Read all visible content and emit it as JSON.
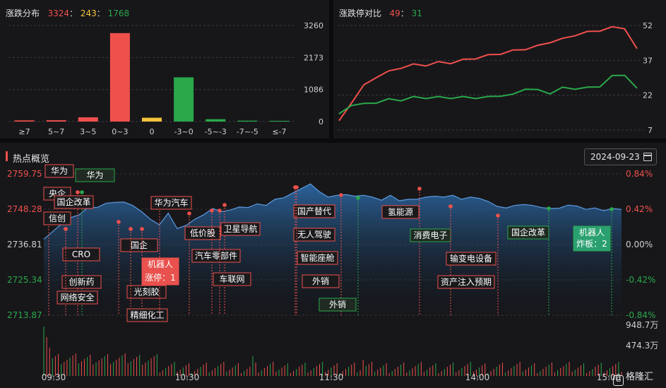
{
  "distribution": {
    "title": "涨跌分布",
    "up_count": "3324",
    "flat_count": "243",
    "down_count": "1768",
    "colon": "：",
    "colors": {
      "up": "#f0504c",
      "flat": "#f5c33b",
      "down": "#2aa84a"
    }
  },
  "ratio_panel": {
    "title": "涨跌停对比",
    "limit_up": "49",
    "limit_down": "31",
    "colon": "："
  },
  "hot": {
    "title": "热点概览",
    "date": "2024-09-23",
    "calendar_icon": "calendar-icon",
    "logo_text": "格隆汇"
  },
  "chart_data": [
    {
      "type": "bar",
      "title": "",
      "categories": [
        "≥7",
        "5~7",
        "3~5",
        "0~3",
        "0",
        "-3~0",
        "-5~-3",
        "-7~-5",
        "≤-7"
      ],
      "values": [
        40,
        45,
        145,
        3000,
        130,
        1500,
        80,
        30,
        25
      ],
      "bar_colors": [
        "#f0504c",
        "#f0504c",
        "#f0504c",
        "#f0504c",
        "#f5c33b",
        "#2aa84a",
        "#2aa84a",
        "#2aa84a",
        "#2aa84a"
      ],
      "yticks": [
        "3260",
        "2173",
        "1086",
        "0"
      ],
      "ylim": [
        0,
        3260
      ],
      "grid": true
    },
    {
      "type": "line",
      "title": "",
      "yticks": [
        "52",
        "37",
        "22",
        "7"
      ],
      "ylim": [
        7,
        52
      ],
      "series": [
        {
          "color": "#f0504c",
          "values": [
            11,
            19,
            26,
            30,
            32,
            34,
            35,
            35,
            36,
            36,
            37,
            38,
            39,
            40,
            41,
            42,
            43,
            45,
            46,
            48,
            49,
            50,
            51,
            51,
            42
          ]
        },
        {
          "color": "#2aa84a",
          "values": [
            14,
            18,
            18,
            19,
            20,
            20,
            21,
            21,
            21,
            21,
            21,
            21,
            21,
            22,
            22,
            25,
            24,
            23,
            25,
            25,
            25,
            26,
            30,
            31,
            25
          ]
        }
      ],
      "grid": true
    },
    {
      "type": "area",
      "title": "",
      "y_left_ticks": [
        "2759.75",
        "2748.28",
        "2736.81",
        "2725.34",
        "2713.87"
      ],
      "y_right_ticks": [
        "0.84%",
        "0.42%",
        "0.00%",
        "-0.42%",
        "-0.84%"
      ],
      "ylim": [
        2713.87,
        2759.75
      ],
      "x_ticks": [
        "09:30",
        "10:30",
        "11:30",
        "14:00",
        "15:00"
      ],
      "volume_ticks": [
        "948.7万",
        "474.3万"
      ],
      "index_values": [
        2738.5,
        2741,
        2743.5,
        2745.5,
        2746.5,
        2749,
        2748.8,
        2750.2,
        2750.5,
        2750.6,
        2749.5,
        2747.5,
        2745,
        2743.2,
        2747,
        2742,
        2743,
        2745,
        2746.5,
        2748.5,
        2747.5,
        2748,
        2749,
        2748.8,
        2750,
        2749.5,
        2751.5,
        2752,
        2753.5,
        2755,
        2756.5,
        2754,
        2752.2,
        2752.8,
        2753,
        2752.5,
        2752.8,
        2752.2,
        2751.2,
        2752.8,
        2751,
        2751.5,
        2751.5,
        2752.2,
        2752.5,
        2752.2,
        2752.8,
        2751.5,
        2752.2,
        2751.8,
        2750.8,
        2749.2,
        2748.7,
        2749.5,
        2749.8,
        2749.5,
        2748.8,
        2748.5,
        2748.6,
        2749.6,
        2749.3,
        2748.2,
        2748.7,
        2747.8,
        2748.5,
        2748.2
      ],
      "up_color": "#f0504c",
      "down_color": "#2aa84a",
      "area_color": "#2f6fb0",
      "annotations": [
        {
          "label": "华为",
          "sub": "",
          "kind": "up"
        },
        {
          "label": "华为",
          "sub": "",
          "kind": "down"
        },
        {
          "label": "央企",
          "sub": "",
          "kind": "up"
        },
        {
          "label": "国企改革",
          "sub": "",
          "kind": "up"
        },
        {
          "label": "信创",
          "sub": "",
          "kind": "up"
        },
        {
          "label": "CRO",
          "sub": "",
          "kind": "up"
        },
        {
          "label": "创新药",
          "sub": "",
          "kind": "up"
        },
        {
          "label": "网络安全",
          "sub": "",
          "kind": "up"
        },
        {
          "label": "国企",
          "sub": "",
          "kind": "up"
        },
        {
          "label": "机器人",
          "sub": "涨停：1",
          "kind": "up-fill"
        },
        {
          "label": "光刻胶",
          "sub": "",
          "kind": "up"
        },
        {
          "label": "精细化工",
          "sub": "",
          "kind": "up"
        },
        {
          "label": "华为汽车",
          "sub": "",
          "kind": "up"
        },
        {
          "label": "低价股",
          "sub": "",
          "kind": "up"
        },
        {
          "label": "卫星导航",
          "sub": "",
          "kind": "up"
        },
        {
          "label": "汽车零部件",
          "sub": "",
          "kind": "up"
        },
        {
          "label": "车联网",
          "sub": "",
          "kind": "up"
        },
        {
          "label": "国产替代",
          "sub": "",
          "kind": "up"
        },
        {
          "label": "无人驾驶",
          "sub": "",
          "kind": "up"
        },
        {
          "label": "智能座舱",
          "sub": "",
          "kind": "up"
        },
        {
          "label": "外销",
          "sub": "",
          "kind": "up"
        },
        {
          "label": "外销",
          "sub": "",
          "kind": "down"
        },
        {
          "label": "氢能源",
          "sub": "",
          "kind": "up"
        },
        {
          "label": "消费电子",
          "sub": "",
          "kind": "down"
        },
        {
          "label": "输变电设备",
          "sub": "",
          "kind": "up"
        },
        {
          "label": "资产注入预期",
          "sub": "",
          "kind": "up"
        },
        {
          "label": "国企改革",
          "sub": "",
          "kind": "down"
        },
        {
          "label": "机器人",
          "sub": "炸板：2",
          "kind": "down-fill"
        }
      ]
    }
  ]
}
